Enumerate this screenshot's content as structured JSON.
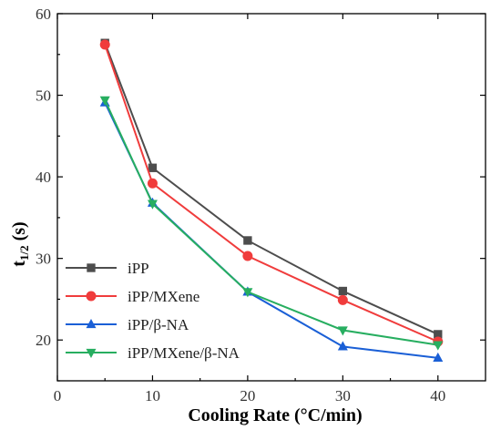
{
  "chart_data": {
    "type": "line",
    "title": "",
    "xlabel": "Cooling Rate (°C/min)",
    "ylabel_main": "t",
    "ylabel_sub": "1/2",
    "ylabel_unit": " (s)",
    "xlim": [
      0,
      45
    ],
    "ylim": [
      15,
      60
    ],
    "x_ticks": [
      0,
      10,
      20,
      30,
      40
    ],
    "y_ticks": [
      20,
      30,
      40,
      50,
      60
    ],
    "grid": false,
    "legend_position": "bottom-left",
    "x": [
      5,
      10,
      20,
      30,
      40
    ],
    "series": [
      {
        "name": "iPP",
        "values": [
          56.4,
          41.1,
          32.2,
          26.0,
          20.7
        ],
        "color": "#4d4d4d",
        "marker": "square"
      },
      {
        "name": "iPP/MXene",
        "values": [
          56.2,
          39.2,
          30.3,
          24.9,
          19.8
        ],
        "color": "#f03c3c",
        "marker": "circle"
      },
      {
        "name": "iPP/β-NA",
        "values": [
          49.1,
          36.8,
          25.9,
          19.2,
          17.8
        ],
        "color": "#1a5fd6",
        "marker": "triangle-up"
      },
      {
        "name": "iPP/MXene/β-NA",
        "values": [
          49.4,
          36.7,
          25.9,
          21.2,
          19.4
        ],
        "color": "#27ae60",
        "marker": "triangle-down"
      }
    ]
  }
}
